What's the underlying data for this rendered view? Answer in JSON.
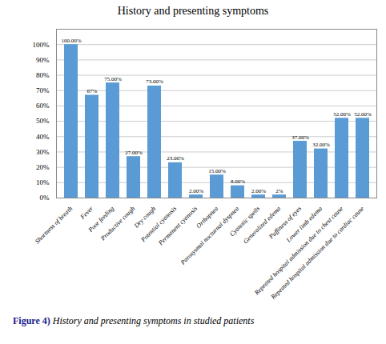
{
  "chart_data": {
    "type": "bar",
    "title": "History and presenting symptoms",
    "categories": [
      "Shortness of breath",
      "Fever",
      "Poor feeding",
      "Productive cough",
      "Dry cough",
      "Potential cyanosis",
      "Permanent cyanosis",
      "Orthopnea",
      "Paroxysmal nocturnal dyspnea",
      "Cyanotic spells",
      "Generalized edema",
      "Puffiness of eyes",
      "Lower limb edema",
      "Repeated hospital admission due to chest cause",
      "Repeated hospital admission due to cardiac cause"
    ],
    "values": [
      100.0,
      67.0,
      75.0,
      27.0,
      73.0,
      23.0,
      2.0,
      15.0,
      8.0,
      2.0,
      2.0,
      37.0,
      32.0,
      52.0,
      52.0
    ],
    "value_labels": [
      "100.00%",
      "67%",
      "75.00%",
      "27.00%",
      "73.00%",
      "23.00%",
      "2.00%",
      "15.00%",
      "8.00%",
      "2.00%",
      "2%",
      "37.00%",
      "32.00%",
      "52.00%",
      "52.00%"
    ],
    "data_labels": true,
    "color": "#5b9bd5",
    "ylim": [
      0,
      110
    ],
    "yticks": [
      {
        "value": 0,
        "label": "0%"
      },
      {
        "value": 10,
        "label": "10%"
      },
      {
        "value": 20,
        "label": "20%"
      },
      {
        "value": 30,
        "label": "30%"
      },
      {
        "value": 40,
        "label": "40%"
      },
      {
        "value": 50,
        "label": "50%"
      },
      {
        "value": 60,
        "label": "60%"
      },
      {
        "value": 70,
        "label": "70%"
      },
      {
        "value": 80,
        "label": "80%"
      },
      {
        "value": 90,
        "label": "90%"
      },
      {
        "value": 100,
        "label": "100%"
      }
    ],
    "grid": true,
    "caption": [
      "Figure 4)",
      "History and presenting symptoms in studied patients"
    ]
  }
}
